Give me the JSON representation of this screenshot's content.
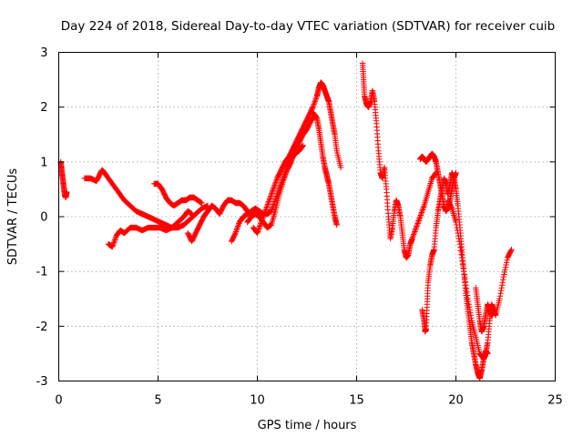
{
  "chart_data": {
    "type": "scatter",
    "title": "Day 224 of 2018, Sidereal Day-to-day VTEC variation (SDTVAR) for receiver cuib",
    "xlabel": "GPS time / hours",
    "ylabel": "SDTVAR / TECUs",
    "xlim": [
      0,
      25
    ],
    "ylim": [
      -3,
      3
    ],
    "xticks": [
      "0",
      "5",
      "10",
      "15",
      "20",
      "25"
    ],
    "yticks": [
      "-3",
      "-2",
      "-1",
      "0",
      "1",
      "2",
      "3"
    ],
    "grid": true,
    "marker": "+",
    "color": "#ff0000",
    "series": [
      {
        "segments": [
          {
            "x": [
              0.1,
              0.15,
              0.2,
              0.25,
              0.3,
              0.35,
              0.4
            ],
            "y": [
              1.0,
              0.85,
              0.7,
              0.55,
              0.4,
              0.35,
              0.45
            ]
          },
          {
            "x": [
              1.3,
              1.6,
              1.9,
              2.1,
              2.2,
              2.4,
              2.7,
              3.0,
              3.3,
              3.6,
              3.9,
              4.2,
              4.5,
              4.8,
              5.1,
              5.4,
              5.7,
              6.0,
              6.3,
              6.6,
              6.9,
              7.2,
              7.5
            ],
            "y": [
              0.7,
              0.7,
              0.65,
              0.8,
              0.85,
              0.75,
              0.6,
              0.45,
              0.3,
              0.2,
              0.1,
              0.05,
              0.0,
              -0.05,
              -0.1,
              -0.15,
              -0.2,
              -0.2,
              -0.15,
              -0.05,
              0.05,
              0.15,
              0.2
            ]
          },
          {
            "x": [
              2.5,
              2.7,
              2.9,
              3.1,
              3.3,
              3.6,
              3.9,
              4.2,
              4.5,
              4.8,
              5.1,
              5.4,
              5.7,
              6.0,
              6.3,
              6.5,
              6.7
            ],
            "y": [
              -0.5,
              -0.55,
              -0.35,
              -0.25,
              -0.3,
              -0.2,
              -0.2,
              -0.25,
              -0.2,
              -0.2,
              -0.2,
              -0.25,
              -0.2,
              -0.1,
              0.0,
              0.1,
              0.05
            ]
          },
          {
            "x": [
              4.8,
              5.0,
              5.2,
              5.4,
              5.6,
              5.8,
              6.0,
              6.2,
              6.4,
              6.6,
              6.8,
              7.0,
              7.2
            ],
            "y": [
              0.6,
              0.6,
              0.5,
              0.35,
              0.25,
              0.2,
              0.25,
              0.3,
              0.3,
              0.35,
              0.35,
              0.3,
              0.25
            ]
          },
          {
            "x": [
              6.5,
              6.7,
              6.9,
              7.1,
              7.3,
              7.5,
              7.7,
              7.9,
              8.1,
              8.3,
              8.5,
              8.7,
              8.9,
              9.1,
              9.3,
              9.5,
              9.7
            ],
            "y": [
              -0.3,
              -0.45,
              -0.3,
              -0.15,
              0.0,
              0.1,
              0.2,
              0.15,
              0.05,
              0.2,
              0.3,
              0.3,
              0.25,
              0.25,
              0.2,
              0.1,
              0.05
            ]
          },
          {
            "x": [
              8.7,
              8.9,
              9.1,
              9.3,
              9.5,
              9.7,
              9.9,
              10.1,
              10.3,
              10.5,
              10.7,
              10.9,
              11.1,
              11.3,
              11.5,
              11.7,
              11.9,
              12.1,
              12.3
            ],
            "y": [
              -0.45,
              -0.3,
              -0.1,
              0.0,
              0.05,
              0.1,
              0.15,
              0.1,
              0.05,
              0.05,
              0.1,
              0.3,
              0.5,
              0.7,
              0.9,
              1.05,
              1.15,
              1.2,
              1.3
            ]
          },
          {
            "x": [
              9.5,
              9.7,
              9.9,
              10.1,
              10.3,
              10.5,
              10.7,
              10.9,
              11.1,
              11.3,
              11.5,
              11.7,
              11.9,
              12.1,
              12.3,
              12.5,
              12.7,
              12.9
            ],
            "y": [
              -0.1,
              0.0,
              0.05,
              0.0,
              -0.1,
              -0.2,
              -0.15,
              0.1,
              0.4,
              0.65,
              0.85,
              1.0,
              1.2,
              1.35,
              1.5,
              1.6,
              1.75,
              1.85
            ]
          },
          {
            "x": [
              9.8,
              10.0,
              10.2,
              10.4,
              10.6,
              10.8,
              11.0,
              11.2,
              11.4,
              11.6,
              11.8,
              12.0,
              12.2,
              12.4,
              12.6,
              12.8,
              13.0,
              13.1,
              13.2,
              13.3,
              13.4,
              13.5,
              13.6,
              13.7,
              13.8,
              13.9,
              14.0,
              14.2
            ],
            "y": [
              -0.2,
              -0.3,
              -0.1,
              0.1,
              0.3,
              0.5,
              0.7,
              0.85,
              1.0,
              1.1,
              1.25,
              1.4,
              1.55,
              1.7,
              1.85,
              2.0,
              2.2,
              2.35,
              2.45,
              2.4,
              2.3,
              2.2,
              2.1,
              1.9,
              1.7,
              1.5,
              1.2,
              0.9
            ]
          },
          {
            "x": [
              12.8,
              13.0,
              13.1,
              13.2,
              13.3,
              13.4,
              13.5,
              13.6,
              13.7,
              13.8,
              13.9,
              14.0
            ],
            "y": [
              1.9,
              1.8,
              1.6,
              1.35,
              1.1,
              0.9,
              0.75,
              0.6,
              0.4,
              0.2,
              0.0,
              -0.15
            ]
          },
          {
            "x": [
              15.3,
              15.35,
              15.4,
              15.5,
              15.6,
              15.7,
              15.8,
              15.9,
              16.0,
              16.1,
              16.2,
              16.3,
              16.4,
              16.5,
              16.6,
              16.7,
              16.8,
              16.9,
              17.0,
              17.1,
              17.2,
              17.3,
              17.4,
              17.5,
              17.6,
              17.7,
              17.8,
              18.0,
              18.2,
              18.4,
              18.6,
              18.8,
              19.0
            ],
            "y": [
              2.8,
              2.5,
              2.2,
              2.05,
              2.0,
              2.1,
              2.3,
              2.1,
              1.7,
              1.2,
              0.8,
              0.7,
              0.9,
              0.5,
              0.0,
              -0.4,
              -0.2,
              0.1,
              0.3,
              0.2,
              0.0,
              -0.3,
              -0.6,
              -0.75,
              -0.7,
              -0.5,
              -0.4,
              -0.2,
              0.0,
              0.2,
              0.45,
              0.7,
              0.8
            ]
          },
          {
            "x": [
              18.2,
              18.3,
              18.4,
              18.5,
              18.6,
              18.7,
              18.8,
              18.9,
              19.0,
              19.1,
              19.2,
              19.3,
              19.4,
              19.5,
              19.6,
              19.7,
              19.8,
              19.9,
              20.0
            ],
            "y": [
              1.05,
              1.1,
              1.05,
              1.0,
              1.05,
              1.1,
              1.15,
              1.1,
              1.0,
              0.8,
              0.6,
              0.4,
              0.2,
              0.1,
              0.15,
              0.3,
              0.5,
              0.7,
              0.8
            ]
          },
          {
            "x": [
              18.3,
              18.4,
              18.45,
              18.5,
              18.55,
              18.6,
              18.7,
              18.8,
              18.9,
              19.0,
              19.1,
              19.2,
              19.3,
              19.4,
              19.5,
              19.6,
              19.7,
              19.8,
              19.9,
              20.0,
              20.1,
              20.2,
              20.3,
              20.4,
              20.5,
              20.6,
              20.7,
              20.8,
              20.9,
              21.0,
              21.1,
              21.2,
              21.3,
              21.4,
              21.5,
              21.6
            ],
            "y": [
              -1.7,
              -1.9,
              -2.1,
              -2.05,
              -1.6,
              -1.2,
              -0.9,
              -0.7,
              -0.6,
              -0.2,
              0.1,
              0.3,
              0.5,
              0.7,
              0.6,
              0.4,
              0.6,
              0.8,
              0.7,
              0.5,
              0.2,
              -0.2,
              -0.6,
              -1.0,
              -1.4,
              -1.7,
              -2.0,
              -2.3,
              -2.5,
              -2.7,
              -2.85,
              -2.95,
              -2.8,
              -2.6,
              -2.45,
              -2.5
            ]
          },
          {
            "x": [
              19.6,
              19.8,
              20.0,
              20.2,
              20.4,
              20.6,
              20.8,
              21.0,
              21.2,
              21.4,
              21.5,
              21.6,
              21.7,
              21.8,
              21.9,
              22.0,
              22.2,
              22.4,
              22.6,
              22.8
            ],
            "y": [
              0.3,
              0.15,
              -0.1,
              -0.5,
              -1.0,
              -1.5,
              -1.9,
              -2.2,
              -2.5,
              -2.6,
              -2.5,
              -2.3,
              -1.9,
              -1.6,
              -1.7,
              -1.8,
              -1.5,
              -1.1,
              -0.75,
              -0.6
            ]
          },
          {
            "x": [
              21.0,
              21.1,
              21.2,
              21.3,
              21.4,
              21.5,
              21.6,
              21.7,
              21.8,
              21.9
            ],
            "y": [
              -1.3,
              -1.6,
              -1.9,
              -2.1,
              -2.0,
              -1.8,
              -1.6,
              -1.7,
              -1.8,
              -1.75
            ]
          }
        ]
      }
    ]
  }
}
